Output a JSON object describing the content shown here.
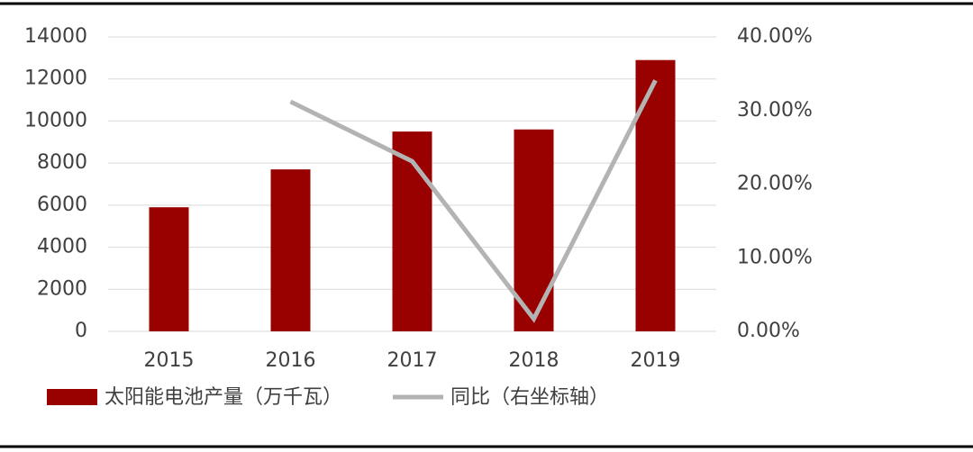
{
  "chart_data": {
    "type": "bar",
    "categories": [
      "2015",
      "2016",
      "2017",
      "2018",
      "2019"
    ],
    "series": [
      {
        "name": "太阳能电池产量（万千瓦）",
        "color": "#990000",
        "type": "bar",
        "values": [
          5900,
          7700,
          9500,
          9600,
          12900
        ]
      },
      {
        "name": "同比（右坐标轴）",
        "color": "#b3b3b3",
        "type": "line",
        "axis": "y2",
        "values": [
          null,
          31.2,
          23.1,
          1.7,
          34.1
        ]
      }
    ],
    "ylim": [
      0,
      14000
    ],
    "yticks": [
      0,
      2000,
      4000,
      6000,
      8000,
      10000,
      12000,
      14000
    ],
    "y2lim": [
      0,
      40
    ],
    "y2ticks": [
      {
        "value": 0,
        "label": "0.00%"
      },
      {
        "value": 10,
        "label": "10.00%"
      },
      {
        "value": 20,
        "label": "20.00%"
      },
      {
        "value": 30,
        "label": "30.00%"
      },
      {
        "value": 40,
        "label": "40.00%"
      }
    ],
    "grid": true,
    "legend": "bottom"
  }
}
